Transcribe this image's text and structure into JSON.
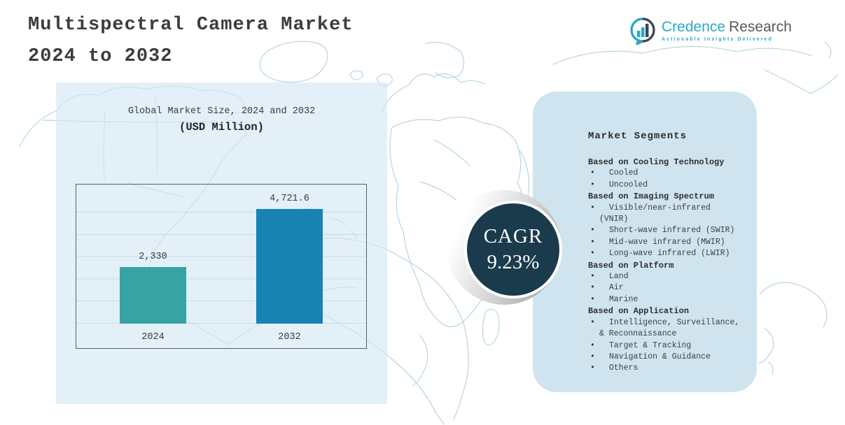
{
  "header": {
    "title_line1": "Multispectral Camera Market",
    "title_line2": "2024 to 2032"
  },
  "logo": {
    "brand_primary": "Credence",
    "brand_secondary": "Research",
    "tagline": "Actionable Insights Delivered",
    "icon": "bar-chart-bubble-icon",
    "brand_color": "#2ba8c9",
    "secondary_color": "#58595b"
  },
  "chart_data": {
    "type": "bar",
    "title": "Global Market Size, 2024 and 2032",
    "subtitle": "(USD Million)",
    "categories": [
      "2024",
      "2032"
    ],
    "values": [
      2330,
      4721.6
    ],
    "value_labels": [
      "2,330",
      "4,721.6"
    ],
    "bar_colors": [
      "#37a3a3",
      "#1683b3"
    ],
    "xlabel": "",
    "ylabel": "",
    "ylim": [
      0,
      4721.6
    ],
    "grid": true,
    "gridline_count": 6,
    "legend": "none"
  },
  "cagr": {
    "label": "CAGR",
    "value": "9.23%",
    "circle_color": "#1a3b4c"
  },
  "segments": {
    "heading": "Market Segments",
    "sections": [
      {
        "title": "Based on Cooling Technology",
        "items": [
          "Cooled",
          "Uncooled"
        ]
      },
      {
        "title": "Based on Imaging Spectrum",
        "items": [
          "Visible/near-infrared (VNIR)",
          "Short-wave infrared (SWIR)",
          "Mid-wave infrared (MWIR)",
          "Long-wave infrared (LWIR)"
        ]
      },
      {
        "title": "Based on Platform",
        "items": [
          "Land",
          "Air",
          "Marine"
        ]
      },
      {
        "title": "Based on Application",
        "items": [
          "Intelligence, Surveillance, & Reconnaissance",
          "Target & Tracking",
          "Navigation & Guidance",
          "Others"
        ]
      }
    ]
  }
}
